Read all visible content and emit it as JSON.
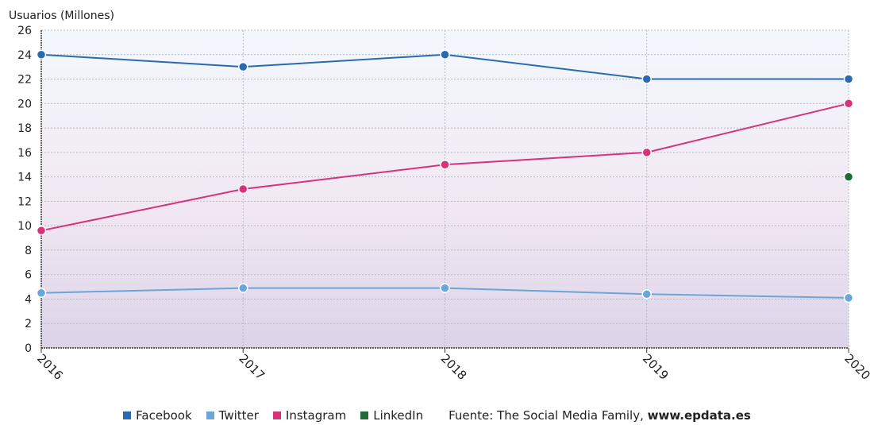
{
  "chart_data": {
    "type": "line",
    "ylabel": "Usuarios (Millones)",
    "categories": [
      "2016",
      "2017",
      "2018",
      "2019",
      "2020"
    ],
    "ylim": [
      0,
      26
    ],
    "yticks": [
      0,
      2,
      4,
      6,
      8,
      10,
      12,
      14,
      16,
      18,
      20,
      22,
      24,
      26
    ],
    "grid": true,
    "legend_position": "bottom",
    "series": [
      {
        "name": "Facebook",
        "color": "#2a6ab1",
        "values": [
          24,
          23,
          24,
          22,
          22
        ]
      },
      {
        "name": "Twitter",
        "color": "#6aa6d8",
        "values": [
          4.5,
          4.9,
          4.9,
          4.4,
          4.1
        ]
      },
      {
        "name": "Instagram",
        "color": "#d6337a",
        "values": [
          9.6,
          13,
          15,
          16,
          20
        ]
      },
      {
        "name": "LinkedIn",
        "color": "#1e6b34",
        "values": [
          null,
          null,
          null,
          null,
          14
        ]
      }
    ],
    "source_label": "Fuente: The Social Media Family,",
    "source_site": "www.epdata.es"
  }
}
